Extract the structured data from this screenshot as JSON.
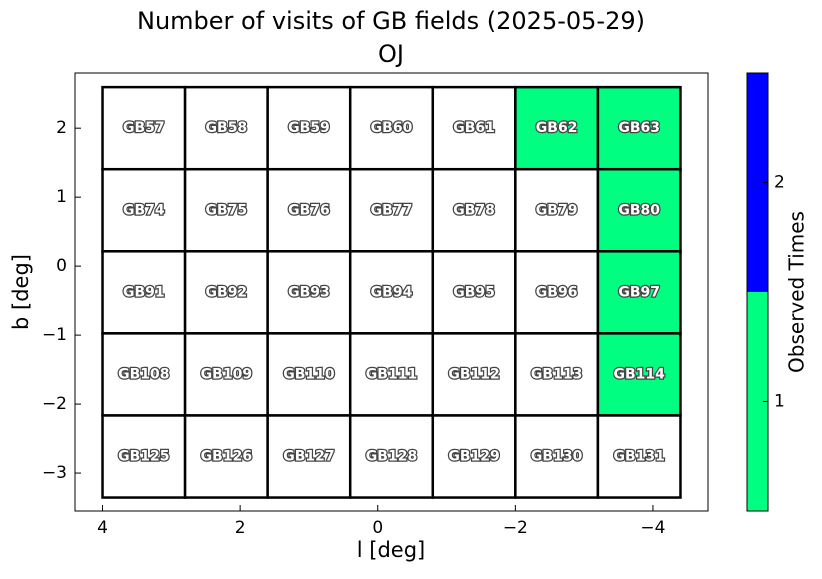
{
  "chart_data": {
    "type": "field-map",
    "title": "Number of visits of GB fields (2025-05-29)",
    "subtitle": "OJ",
    "xlabel": "l [deg]",
    "ylabel": "b [deg]",
    "xlim": [
      4.4,
      -4.8
    ],
    "xticks": [
      4,
      2,
      0,
      {
        "value": -2,
        "label": "−2"
      },
      {
        "value": -4,
        "label": "−4"
      }
    ],
    "ylim": [
      -3.55,
      2.8
    ],
    "yticks": [
      {
        "value": -3,
        "label": "−3"
      },
      {
        "value": -2,
        "label": "−2"
      },
      {
        "value": -1,
        "label": "−1"
      },
      0,
      1,
      2
    ],
    "fields": [
      {
        "name": "GB57",
        "l": 3.4,
        "b": 2.0,
        "visits": 0
      },
      {
        "name": "GB58",
        "l": 2.2,
        "b": 2.0,
        "visits": 0
      },
      {
        "name": "GB59",
        "l": 1.0,
        "b": 2.0,
        "visits": 0
      },
      {
        "name": "GB60",
        "l": -0.2,
        "b": 2.0,
        "visits": 0
      },
      {
        "name": "GB61",
        "l": -1.4,
        "b": 2.0,
        "visits": 0
      },
      {
        "name": "GB62",
        "l": -2.6,
        "b": 2.0,
        "visits": 1
      },
      {
        "name": "GB63",
        "l": -3.8,
        "b": 2.0,
        "visits": 1
      },
      {
        "name": "GB74",
        "l": 3.4,
        "b": 0.81,
        "visits": 0
      },
      {
        "name": "GB75",
        "l": 2.2,
        "b": 0.81,
        "visits": 0
      },
      {
        "name": "GB76",
        "l": 1.0,
        "b": 0.81,
        "visits": 0
      },
      {
        "name": "GB77",
        "l": -0.2,
        "b": 0.81,
        "visits": 0
      },
      {
        "name": "GB78",
        "l": -1.4,
        "b": 0.81,
        "visits": 0
      },
      {
        "name": "GB79",
        "l": -2.6,
        "b": 0.81,
        "visits": 0
      },
      {
        "name": "GB80",
        "l": -3.8,
        "b": 0.81,
        "visits": 1
      },
      {
        "name": "GB91",
        "l": 3.4,
        "b": -0.38,
        "visits": 0
      },
      {
        "name": "GB92",
        "l": 2.2,
        "b": -0.38,
        "visits": 0
      },
      {
        "name": "GB93",
        "l": 1.0,
        "b": -0.38,
        "visits": 0
      },
      {
        "name": "GB94",
        "l": -0.2,
        "b": -0.38,
        "visits": 0
      },
      {
        "name": "GB95",
        "l": -1.4,
        "b": -0.38,
        "visits": 0
      },
      {
        "name": "GB96",
        "l": -2.6,
        "b": -0.38,
        "visits": 0
      },
      {
        "name": "GB97",
        "l": -3.8,
        "b": -0.38,
        "visits": 1
      },
      {
        "name": "GB108",
        "l": 3.4,
        "b": -1.57,
        "visits": 0
      },
      {
        "name": "GB109",
        "l": 2.2,
        "b": -1.57,
        "visits": 0
      },
      {
        "name": "GB110",
        "l": 1.0,
        "b": -1.57,
        "visits": 0
      },
      {
        "name": "GB111",
        "l": -0.2,
        "b": -1.57,
        "visits": 0
      },
      {
        "name": "GB112",
        "l": -1.4,
        "b": -1.57,
        "visits": 0
      },
      {
        "name": "GB113",
        "l": -2.6,
        "b": -1.57,
        "visits": 0
      },
      {
        "name": "GB114",
        "l": -3.8,
        "b": -1.57,
        "visits": 1
      },
      {
        "name": "GB125",
        "l": 3.4,
        "b": -2.76,
        "visits": 0
      },
      {
        "name": "GB126",
        "l": 2.2,
        "b": -2.76,
        "visits": 0
      },
      {
        "name": "GB127",
        "l": 1.0,
        "b": -2.76,
        "visits": 0
      },
      {
        "name": "GB128",
        "l": -0.2,
        "b": -2.76,
        "visits": 0
      },
      {
        "name": "GB129",
        "l": -1.4,
        "b": -2.76,
        "visits": 0
      },
      {
        "name": "GB130",
        "l": -2.6,
        "b": -2.76,
        "visits": 0
      },
      {
        "name": "GB131",
        "l": -3.8,
        "b": -2.76,
        "visits": 0
      }
    ],
    "colorbar": {
      "label": "Observed Times",
      "clim": [
        0.5,
        2.5
      ],
      "ticks": [
        1,
        2
      ],
      "colors": [
        "#00ff80",
        "#0000ff"
      ],
      "empty_color": "#ffffff"
    }
  }
}
